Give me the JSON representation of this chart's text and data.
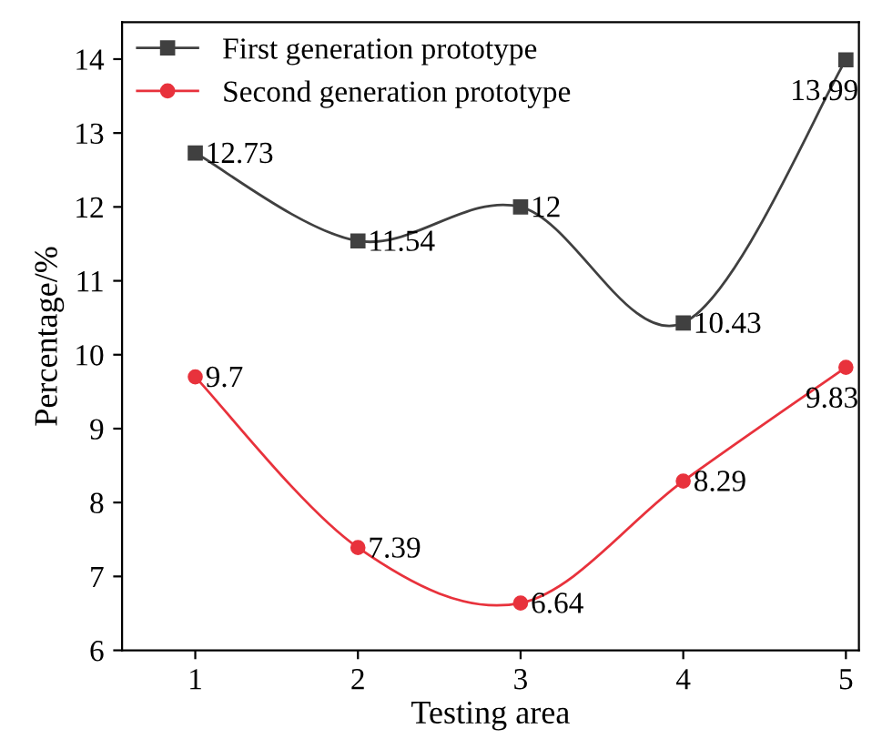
{
  "chart_data": {
    "type": "line",
    "xlabel": "Testing area",
    "ylabel": "Percentage/%",
    "x": [
      1,
      2,
      3,
      4,
      5
    ],
    "series": [
      {
        "name": "First generation prototype",
        "color": "#404040",
        "marker": "square",
        "values": [
          12.73,
          11.54,
          12,
          10.43,
          13.99
        ]
      },
      {
        "name": "Second generation prototype",
        "color": "#e8323c",
        "marker": "circle",
        "values": [
          9.7,
          7.39,
          6.64,
          8.29,
          9.83
        ]
      }
    ],
    "xlim": [
      0.55,
      5.08
    ],
    "xticks": [
      1,
      2,
      3,
      4,
      5
    ],
    "ylim": [
      6,
      14.5
    ],
    "yticks": [
      6,
      7,
      8,
      9,
      10,
      11,
      12,
      13,
      14
    ],
    "data_labels": true,
    "legend": "top left",
    "grid": false,
    "line_style": "solid"
  }
}
